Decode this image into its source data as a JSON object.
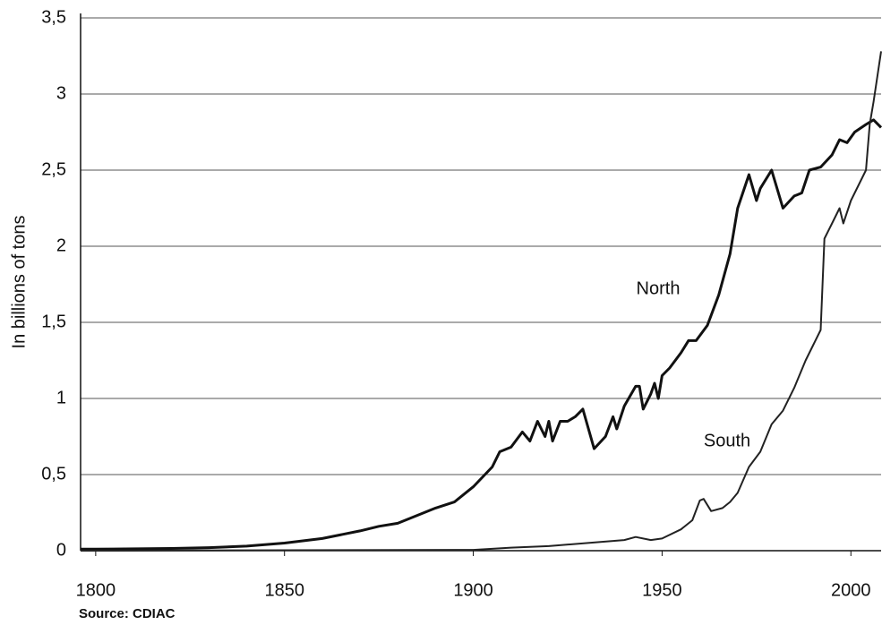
{
  "chart_data": {
    "type": "line",
    "y_label": "In billions of tons",
    "source": "Source: CDIAC",
    "annotations": [
      "North",
      "South"
    ],
    "xlim": [
      1796,
      2008
    ],
    "xticks": [
      1800,
      1850,
      1900,
      1950,
      2000
    ],
    "ylim": [
      0,
      3.5
    ],
    "yticks": [
      0,
      {
        "value": 0.5,
        "label": "0,5"
      },
      1,
      {
        "value": 1.5,
        "label": "1,5"
      },
      2,
      {
        "value": 2.5,
        "label": "2,5"
      },
      3,
      {
        "value": 3.5,
        "label": "3,5"
      }
    ],
    "grid": true,
    "series": [
      {
        "name": "North",
        "color": "#111111",
        "x": [
          1796,
          1800,
          1820,
          1830,
          1840,
          1850,
          1860,
          1870,
          1875,
          1880,
          1885,
          1890,
          1895,
          1900,
          1905,
          1907,
          1910,
          1913,
          1915,
          1917,
          1919,
          1920,
          1921,
          1923,
          1925,
          1927,
          1929,
          1932,
          1935,
          1937,
          1938,
          1940,
          1943,
          1944,
          1945,
          1947,
          1948,
          1949,
          1950,
          1952,
          1955,
          1957,
          1959,
          1962,
          1965,
          1968,
          1970,
          1973,
          1975,
          1976,
          1979,
          1982,
          1985,
          1987,
          1989,
          1992,
          1995,
          1997,
          1999,
          2001,
          2004,
          2006,
          2008
        ],
        "values": [
          0.01,
          0.01,
          0.015,
          0.02,
          0.03,
          0.05,
          0.08,
          0.13,
          0.16,
          0.18,
          0.23,
          0.28,
          0.32,
          0.42,
          0.55,
          0.65,
          0.68,
          0.78,
          0.72,
          0.85,
          0.75,
          0.85,
          0.72,
          0.85,
          0.85,
          0.88,
          0.93,
          0.67,
          0.75,
          0.88,
          0.8,
          0.95,
          1.08,
          1.08,
          0.93,
          1.03,
          1.1,
          1.0,
          1.15,
          1.2,
          1.3,
          1.38,
          1.38,
          1.48,
          1.68,
          1.95,
          2.25,
          2.47,
          2.3,
          2.38,
          2.5,
          2.25,
          2.33,
          2.35,
          2.5,
          2.52,
          2.6,
          2.7,
          2.68,
          2.75,
          2.8,
          2.83,
          2.78
        ]
      },
      {
        "name": "South",
        "color": "#222222",
        "x": [
          1796,
          1800,
          1900,
          1910,
          1920,
          1930,
          1940,
          1943,
          1947,
          1950,
          1955,
          1958,
          1960,
          1961,
          1963,
          1966,
          1968,
          1970,
          1973,
          1976,
          1979,
          1982,
          1985,
          1988,
          1990,
          1992,
          1993,
          1995,
          1997,
          1998,
          2000,
          2002,
          2004,
          2005,
          2006,
          2008
        ],
        "values": [
          0.0,
          0.0,
          0.005,
          0.02,
          0.03,
          0.05,
          0.07,
          0.09,
          0.07,
          0.08,
          0.14,
          0.2,
          0.33,
          0.34,
          0.26,
          0.28,
          0.32,
          0.38,
          0.55,
          0.65,
          0.83,
          0.92,
          1.07,
          1.25,
          1.35,
          1.45,
          2.05,
          2.15,
          2.25,
          2.15,
          2.3,
          2.4,
          2.5,
          2.8,
          2.95,
          3.28
        ]
      }
    ]
  }
}
